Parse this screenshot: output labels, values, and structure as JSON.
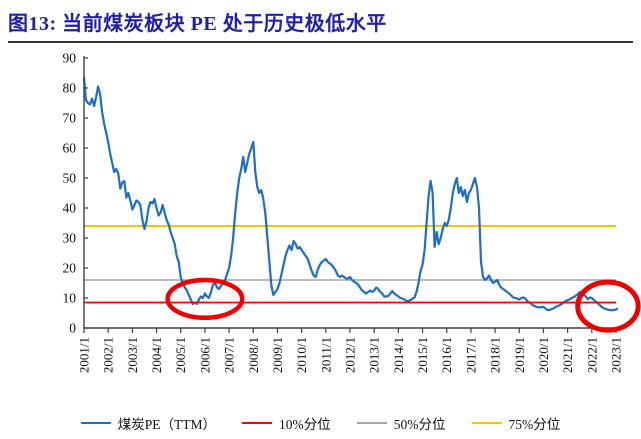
{
  "page": {
    "title": "图13:  当前煤炭板块 PE 处于历史极低水平"
  },
  "chart_data": {
    "type": "line",
    "title": "当前煤炭板块PE处于历史极低水平",
    "xlabel": "",
    "ylabel": "",
    "ylim": [
      0,
      90
    ],
    "yticks": [
      0,
      10,
      20,
      30,
      40,
      50,
      60,
      70,
      80,
      90
    ],
    "xticks": [
      "2001/1",
      "2002/1",
      "2003/1",
      "2004/1",
      "2005/1",
      "2006/1",
      "2007/1",
      "2008/1",
      "2009/1",
      "2010/1",
      "2011/1",
      "2012/1",
      "2013/1",
      "2014/1",
      "2015/1",
      "2016/1",
      "2017/1",
      "2018/1",
      "2019/1",
      "2020/1",
      "2021/1",
      "2022/1",
      "2023/1"
    ],
    "x_start": "2001/1",
    "x_frequency": "monthly",
    "grid": false,
    "legend_position": "bottom",
    "series": [
      {
        "name": "煤炭PE（TTM）",
        "type": "line",
        "color": "#1f6fc0",
        "values": [
          83.5,
          76,
          75,
          74.5,
          76.5,
          74,
          77,
          80.5,
          78,
          72,
          68,
          65,
          62,
          58,
          55,
          52,
          53,
          51.5,
          46.5,
          48.5,
          49,
          43.5,
          45,
          42.5,
          39.5,
          41,
          42.5,
          42,
          41,
          36,
          33,
          35.5,
          40,
          42,
          41.5,
          43,
          40,
          37.5,
          38.5,
          41,
          38.5,
          36,
          34.5,
          32,
          30,
          28,
          24,
          22,
          17,
          15,
          13.5,
          12.5,
          11,
          9.5,
          8,
          8.5,
          8,
          9.5,
          10.5,
          10,
          11.5,
          10.5,
          10,
          12,
          14.5,
          15,
          13.5,
          13,
          14,
          15,
          16,
          18,
          20,
          24,
          30,
          38,
          45,
          50,
          53,
          57,
          52,
          55,
          58,
          60,
          62,
          52,
          47,
          45,
          46,
          43,
          38,
          30,
          22,
          14,
          11,
          12,
          13,
          15,
          18,
          21,
          24,
          26,
          27.5,
          26,
          29,
          28,
          26.5,
          27,
          26,
          25,
          24,
          23,
          21,
          19,
          17.5,
          17,
          19.5,
          21,
          22,
          22.5,
          23,
          22,
          21.5,
          21,
          20,
          19,
          17.5,
          17,
          17.5,
          17,
          16.5,
          16.5,
          17,
          16,
          15.5,
          15,
          14.5,
          13.5,
          12.5,
          12,
          11.5,
          12,
          12.5,
          12,
          12.5,
          13.5,
          13,
          12,
          11.5,
          10.5,
          10.5,
          10.7,
          11.5,
          12.3,
          11.5,
          11,
          10.5,
          10,
          9.8,
          9.5,
          9,
          9,
          9.3,
          9.8,
          10.2,
          12,
          15,
          19,
          21,
          26,
          35,
          44,
          49,
          45,
          27,
          32,
          28,
          30,
          33,
          35,
          34,
          36,
          40,
          45,
          48,
          50,
          45,
          47,
          44,
          46,
          42,
          45,
          46,
          48,
          50,
          47,
          40,
          22,
          17,
          16,
          16.5,
          17.5,
          16,
          15,
          15.5,
          16,
          14.5,
          13.5,
          13,
          12.5,
          12,
          11.5,
          10.8,
          10.2,
          10,
          9.8,
          9.5,
          10,
          10.2,
          9.8,
          9,
          8.5,
          8,
          7.5,
          7.2,
          7,
          6.8,
          7,
          7,
          6.5,
          6,
          6,
          6.3,
          6.5,
          7,
          7.3,
          7.6,
          8,
          8.5,
          9,
          9.3,
          9.6,
          10,
          10.3,
          10.8,
          11.2,
          12,
          10.8,
          11,
          10.5,
          9.6,
          10.2,
          10,
          9.4,
          8.8,
          8.2,
          7.6,
          7,
          6.6,
          6.3,
          6.1,
          6,
          5.9,
          6,
          6.2,
          6.5
        ]
      },
      {
        "name": "10%分位",
        "type": "hline",
        "color": "#ff0000",
        "value": 8.5
      },
      {
        "name": "50%分位",
        "type": "hline",
        "color": "#a6a6a6",
        "value": 16
      },
      {
        "name": "75%分位",
        "type": "hline",
        "color": "#ffc000",
        "value": 34
      }
    ],
    "annotations": [
      {
        "type": "ellipse",
        "label": "historic-low-2005-2007",
        "color": "#ee0000",
        "center_month_index": 60,
        "center_value": 9.7,
        "rx_months": 18.5,
        "ry_value": 6.3
      },
      {
        "type": "ellipse",
        "label": "historic-low-2022-2023",
        "color": "#ee0000",
        "center_month_index": 260,
        "center_value": 7.3,
        "rx_months": 15,
        "ry_value": 8
      }
    ]
  }
}
